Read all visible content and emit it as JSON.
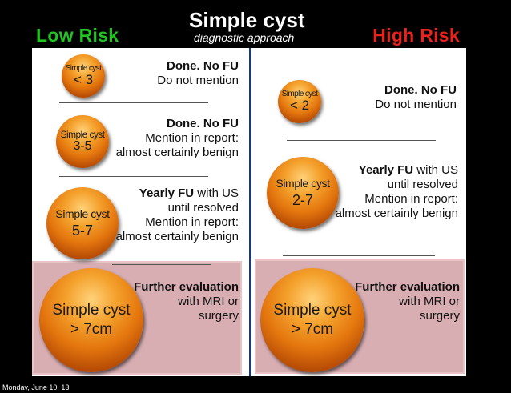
{
  "header": {
    "low_risk": "Low Risk",
    "high_risk": "High Risk",
    "title": "Simple cyst",
    "subtitle": "diagnostic approach"
  },
  "low": {
    "items": [
      {
        "cyst_name": "Simple cyst",
        "cyst_size": "< 3",
        "action": "Done. No FU",
        "note1": "Do not mention",
        "note2": "",
        "note3": ""
      },
      {
        "cyst_name": "Simple cyst",
        "cyst_size": "3-5",
        "action": "Done. No FU",
        "note1": "Mention in report:",
        "note2": "almost certainly benign",
        "note3": ""
      },
      {
        "cyst_name": "Simple cyst",
        "cyst_size": "5-7",
        "action_bold": "Yearly FU",
        "action_rest": " with US",
        "note1": "until resolved",
        "note2": "Mention in report:",
        "note3": "almost certainly benign"
      },
      {
        "cyst_name": "Simple cyst",
        "cyst_size": "> 7cm",
        "action": "Further evaluation",
        "note1": "with MRI or",
        "note2": "surgery",
        "note3": ""
      }
    ]
  },
  "high": {
    "items": [
      {
        "cyst_name": "Simple cyst",
        "cyst_size": "< 2",
        "action": "Done. No FU",
        "note1": "Do not mention",
        "note2": "",
        "note3": ""
      },
      {
        "cyst_name": "Simple cyst",
        "cyst_size": "2-7",
        "action_bold": "Yearly FU",
        "action_rest": " with US",
        "note1": "until resolved",
        "note2": "Mention in report:",
        "note3": "almost certainly benign"
      },
      {
        "cyst_name": "Simple cyst",
        "cyst_size": "> 7cm",
        "action": "Further evaluation",
        "note1": "with MRI or",
        "note2": "surgery",
        "note3": ""
      }
    ]
  },
  "footer": {
    "date": "Monday, June 10, 13"
  },
  "colors": {
    "low_risk": "#22c422",
    "high_risk": "#e8231c",
    "divider": "#1d3a73",
    "highlight": "#d8aeb3",
    "cyst": "#e4760e"
  }
}
